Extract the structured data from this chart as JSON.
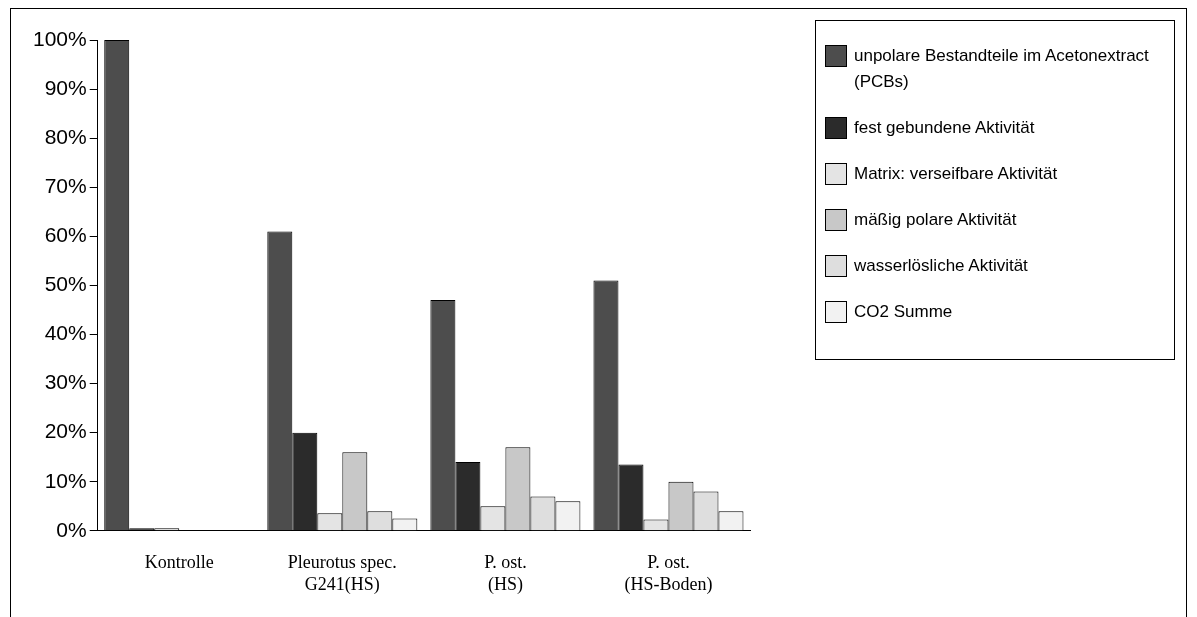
{
  "chart_data": {
    "type": "bar",
    "categories": [
      "Kontrolle",
      "Pleurotus spec.\nG241(HS)",
      "P. ost.\n(HS)",
      "P. ost.\n(HS-Boden)"
    ],
    "series": [
      {
        "name": "unpolare Bestandteile im Acetonextract (PCBs)",
        "color": "#4d4d4d",
        "values": [
          100,
          61,
          47,
          51
        ]
      },
      {
        "name": "fest gebundene Aktivität",
        "color": "#2b2b2b",
        "values": [
          0.5,
          20,
          14,
          13.5
        ]
      },
      {
        "name": "Matrix: verseifbare Aktivität",
        "color": "#e4e4e4",
        "values": [
          0.5,
          3.6,
          5,
          2.3
        ]
      },
      {
        "name": "mäßig polare Aktivität",
        "color": "#c8c8c8",
        "values": [
          0,
          16,
          17,
          10
        ]
      },
      {
        "name": "wasserlösliche Aktivität",
        "color": "#dedede",
        "values": [
          0,
          4,
          7,
          8
        ]
      },
      {
        "name": "CO2 Summe",
        "color": "#f2f2f2",
        "values": [
          0,
          2.5,
          6,
          4
        ]
      }
    ],
    "ylim": [
      0,
      100
    ],
    "yticks": [
      {
        "value": 0,
        "label": "0%"
      },
      {
        "value": 10,
        "label": "10%"
      },
      {
        "value": 20,
        "label": "20%"
      },
      {
        "value": 30,
        "label": "30%"
      },
      {
        "value": 40,
        "label": "40%"
      },
      {
        "value": 50,
        "label": "50%"
      },
      {
        "value": 60,
        "label": "60%"
      },
      {
        "value": 70,
        "label": "70%"
      },
      {
        "value": 80,
        "label": "80%"
      },
      {
        "value": 90,
        "label": "90%"
      },
      {
        "value": 100,
        "label": "100%"
      }
    ],
    "grid": false,
    "legend": "top right"
  }
}
